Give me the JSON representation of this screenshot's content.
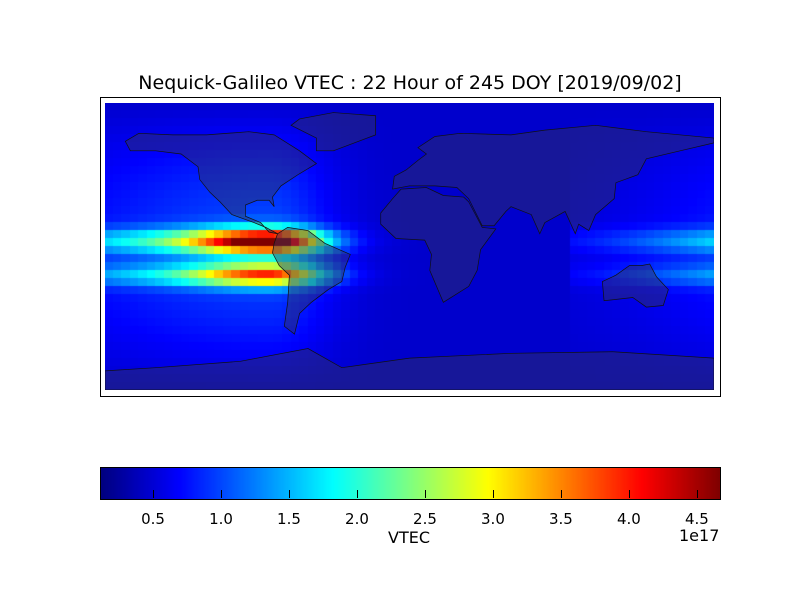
{
  "title": "Nequick-Galileo VTEC : 22 Hour of 245 DOY [2019/09/02]",
  "chart_data": {
    "type": "heatmap",
    "title": "Nequick-Galileo VTEC : 22 Hour of 245 DOY [2019/09/02]",
    "projection": "cylindrical world map with coastlines",
    "colormap": "jet",
    "xlim": [
      -180,
      180
    ],
    "ylim": [
      -90,
      90
    ],
    "colorbar": {
      "label": "VTEC",
      "exponent_label": "1e17",
      "range": [
        0.11,
        4.67
      ],
      "ticks": [
        "0.5",
        "1.0",
        "1.5",
        "2.0",
        "2.5",
        "3.0",
        "3.5",
        "4.0",
        "4.5"
      ],
      "tick_values": [
        0.5,
        1.0,
        1.5,
        2.0,
        2.5,
        3.0,
        3.5,
        4.0,
        4.5
      ],
      "orientation": "horizontal"
    },
    "peak_region": "equatorial anomaly crests over eastern Pacific / northern South America, max ~4.7e17"
  }
}
